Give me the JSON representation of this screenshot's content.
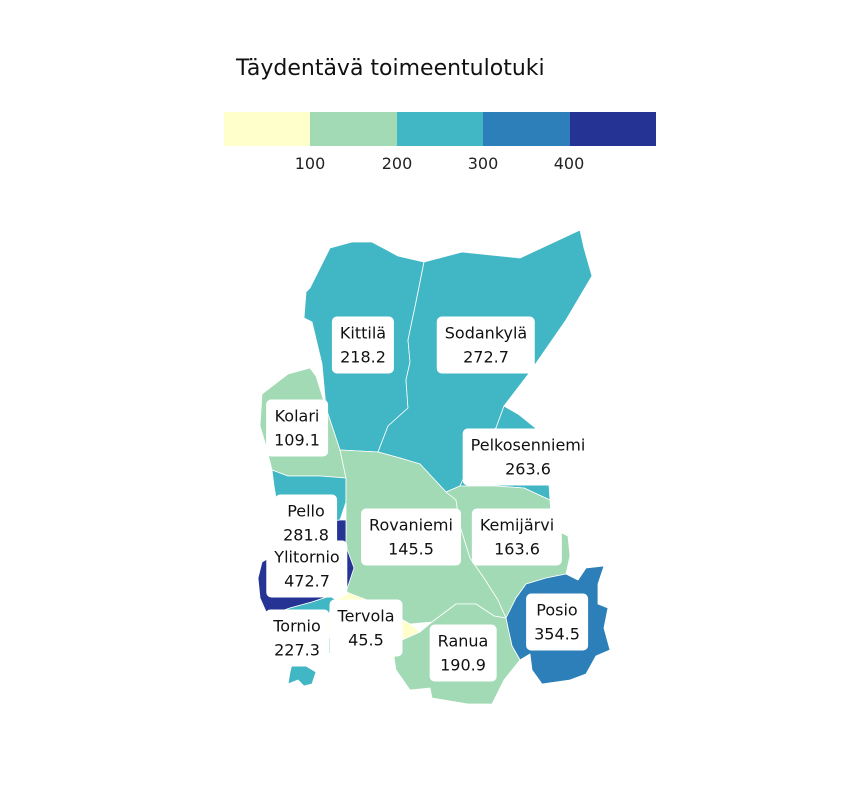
{
  "title": "Täydentävä toimeentulotuki",
  "legend": {
    "colors": [
      "#ffffcc",
      "#a1dab4",
      "#41b6c4",
      "#2c7fb8",
      "#253494"
    ],
    "ticks": [
      "100",
      "200",
      "300",
      "400"
    ]
  },
  "municipalities": [
    {
      "name": "Kittilä",
      "value": "218.2",
      "color": "#41b6c4"
    },
    {
      "name": "Sodankylä",
      "value": "272.7",
      "color": "#41b6c4"
    },
    {
      "name": "Kolari",
      "value": "109.1",
      "color": "#a1dab4"
    },
    {
      "name": "Pelkosenniemi",
      "value": "263.6",
      "color": "#41b6c4"
    },
    {
      "name": "Pello",
      "value": "281.8",
      "color": "#41b6c4"
    },
    {
      "name": "Rovaniemi",
      "value": "145.5",
      "color": "#a1dab4"
    },
    {
      "name": "Kemijärvi",
      "value": "163.6",
      "color": "#a1dab4"
    },
    {
      "name": "Ylitornio",
      "value": "472.7",
      "color": "#253494"
    },
    {
      "name": "Posio",
      "value": "354.5",
      "color": "#2c7fb8"
    },
    {
      "name": "Tervola",
      "value": "45.5",
      "color": "#ffffcc"
    },
    {
      "name": "Tornio",
      "value": "227.3",
      "color": "#41b6c4"
    },
    {
      "name": "Ranua",
      "value": "190.9",
      "color": "#a1dab4"
    }
  ]
}
